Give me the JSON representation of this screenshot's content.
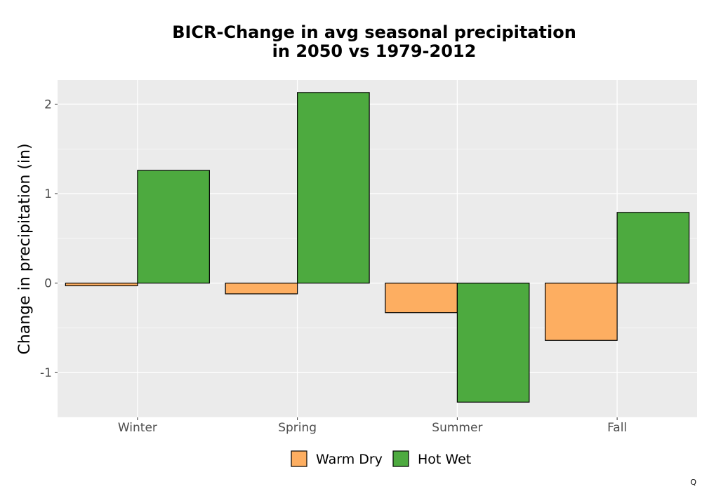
{
  "chart_data": {
    "type": "bar",
    "title_lines": [
      "BICR-Change in avg seasonal precipitation",
      "in 2050 vs 1979-2012"
    ],
    "xlabel": "",
    "ylabel": "Change in precipitation (in)",
    "categories": [
      "Winter",
      "Spring",
      "Summer",
      "Fall"
    ],
    "series": [
      {
        "name": "Warm Dry",
        "color": "#FDAE61",
        "values": [
          -0.03,
          -0.12,
          -0.33,
          -0.64
        ]
      },
      {
        "name": "Hot Wet",
        "color": "#4DAA3F",
        "values": [
          1.26,
          2.13,
          -1.33,
          0.79
        ]
      }
    ],
    "ylim": [
      -1.5,
      2.27
    ],
    "yticks": [
      -1,
      0,
      1,
      2
    ],
    "grid": true,
    "panel_background": "#EBEBEB",
    "legend_position": "bottom"
  },
  "corner_text": "Q"
}
